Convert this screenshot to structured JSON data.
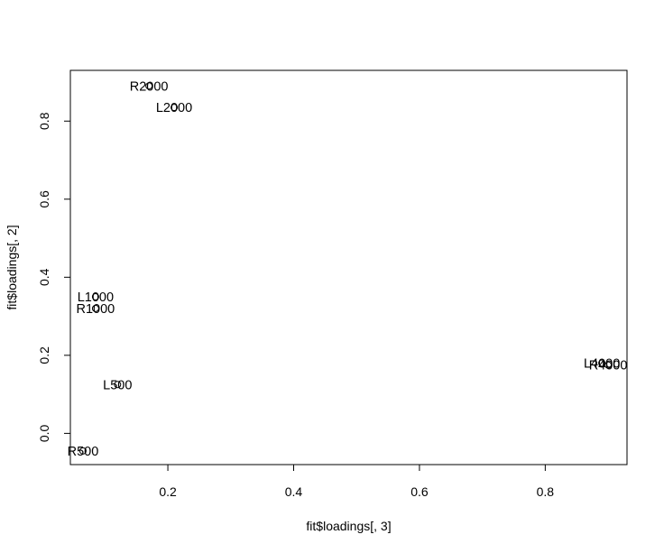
{
  "chart_data": {
    "type": "scatter",
    "title": "",
    "xlabel": "fit$loadings[, 3]",
    "ylabel": "fit$loadings[, 2]",
    "xlim": [
      0.045,
      0.93
    ],
    "ylim": [
      -0.08,
      0.93
    ],
    "x_ticks": [
      0.2,
      0.4,
      0.6,
      0.8
    ],
    "x_tick_labels": [
      "0.2",
      "0.4",
      "0.6",
      "0.8"
    ],
    "y_ticks": [
      0.0,
      0.2,
      0.4,
      0.6,
      0.8
    ],
    "y_tick_labels": [
      "0.0",
      "0.2",
      "0.4",
      "0.6",
      "0.8"
    ],
    "grid": false,
    "legend": "none",
    "points": [
      {
        "label": "R2000",
        "x": 0.17,
        "y": 0.89
      },
      {
        "label": "L2000",
        "x": 0.21,
        "y": 0.835
      },
      {
        "label": "L1000",
        "x": 0.085,
        "y": 0.35
      },
      {
        "label": "R1000",
        "x": 0.085,
        "y": 0.32
      },
      {
        "label": "L500",
        "x": 0.12,
        "y": 0.125
      },
      {
        "label": "R500",
        "x": 0.065,
        "y": -0.045
      },
      {
        "label": "L4000",
        "x": 0.89,
        "y": 0.18
      },
      {
        "label": "R4000",
        "x": 0.9,
        "y": 0.175
      }
    ]
  }
}
